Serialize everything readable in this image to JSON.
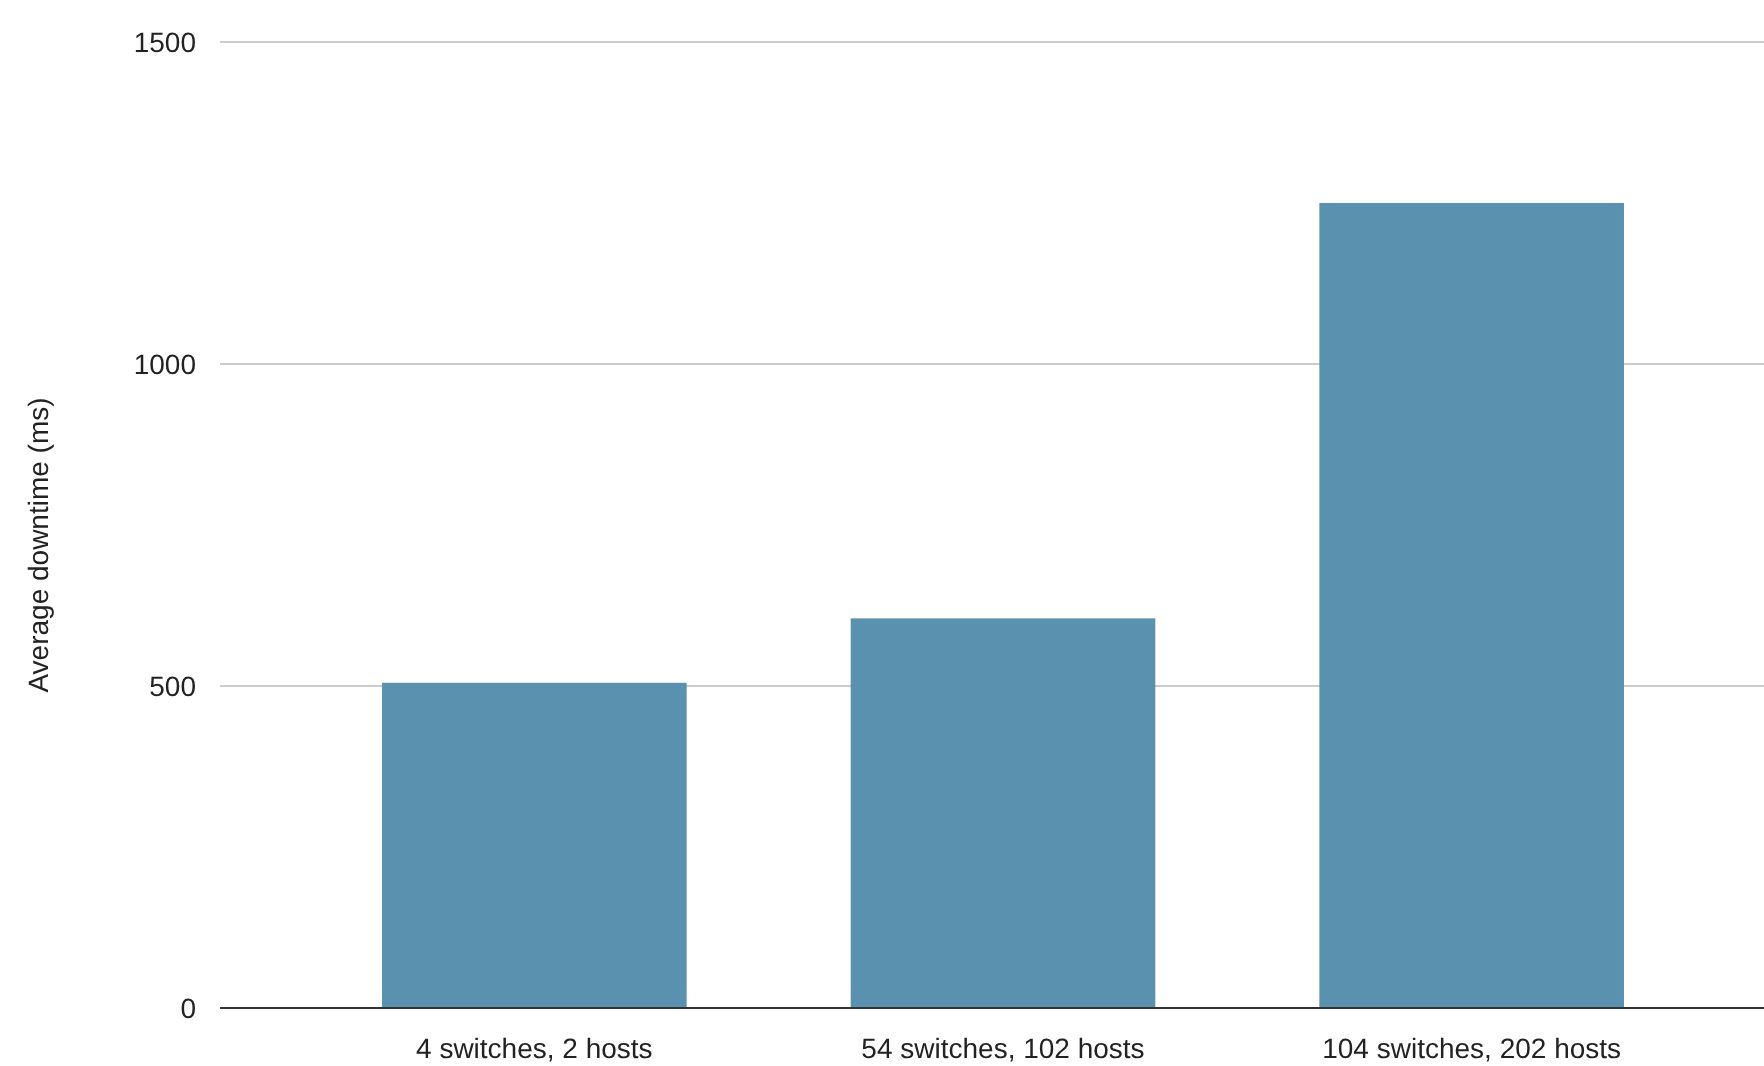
{
  "chart_data": {
    "type": "bar",
    "ylabel": "Average downtime (ms)",
    "categories": [
      "4 switches, 2 hosts",
      "54 switches, 102 hosts",
      "104 switches, 202 hosts"
    ],
    "values": [
      505,
      605,
      1250
    ],
    "color": "#5a91af",
    "ylim": [
      0,
      1500
    ],
    "yticks": [
      0,
      500,
      1000,
      1500
    ],
    "grid": "y"
  }
}
